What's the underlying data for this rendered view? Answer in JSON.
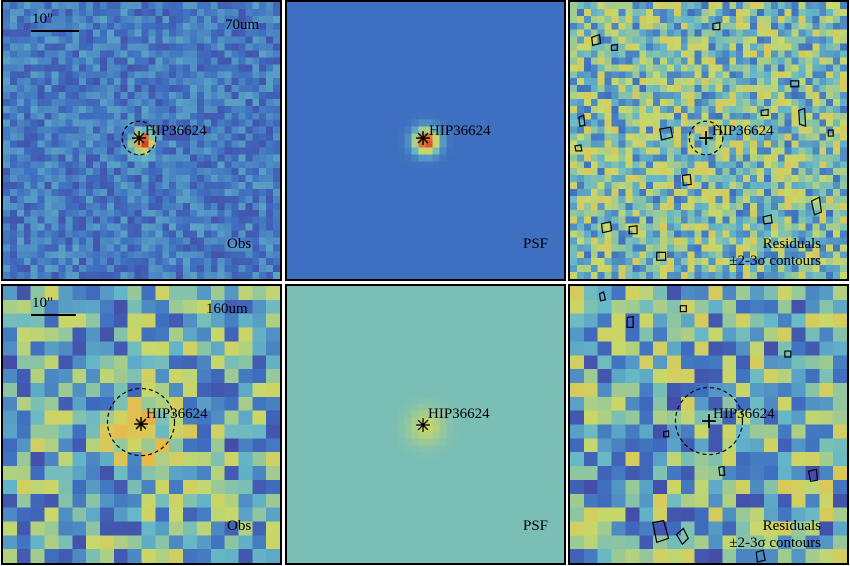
{
  "colors": {
    "low": "#4a2b8f",
    "mid_low": "#3e6fc0",
    "mid": "#66b8c8",
    "mid_high": "#c8d86a",
    "high": "#e9b84a",
    "peak": "#d8402a"
  },
  "rows": [
    {
      "band": "70um",
      "scale_label": "10\"",
      "panels": {
        "obs": {
          "label": "Obs",
          "source": "HIP36624"
        },
        "psf": {
          "label": "PSF",
          "source": "HIP36624"
        },
        "residual": {
          "label_line1": "Residuals",
          "label_line2": "±2-3σ contours",
          "source": "HIP36624"
        }
      }
    },
    {
      "band": "160um",
      "scale_label": "10\"",
      "panels": {
        "obs": {
          "label": "Obs",
          "source": "HIP36624"
        },
        "psf": {
          "label": "PSF",
          "source": "HIP36624"
        },
        "residual": {
          "label_line1": "Residuals",
          "label_line2": "±2-3σ contours",
          "source": "HIP36624"
        }
      }
    }
  ]
}
